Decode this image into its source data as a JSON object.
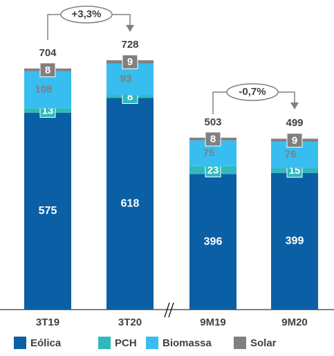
{
  "chart_data": {
    "type": "stacked_bar",
    "categories": [
      "3T19",
      "3T20",
      "9M19",
      "9M20"
    ],
    "series": [
      {
        "name": "Eólica",
        "color": "#0b5fa5",
        "values": [
          575,
          618,
          396,
          399
        ]
      },
      {
        "name": "PCH",
        "color": "#30b9bd",
        "values": [
          13,
          8,
          23,
          15
        ]
      },
      {
        "name": "Biomassa",
        "color": "#38bdf0",
        "values": [
          108,
          93,
          75,
          76
        ]
      },
      {
        "name": "Solar",
        "color": "#808080",
        "values": [
          8,
          9,
          8,
          9
        ]
      }
    ],
    "totals": [
      704,
      728,
      503,
      499
    ],
    "annotations": [
      {
        "text": "+3,3%"
      },
      {
        "text": "-0,7%"
      }
    ],
    "ylim": [
      0,
      900
    ]
  }
}
